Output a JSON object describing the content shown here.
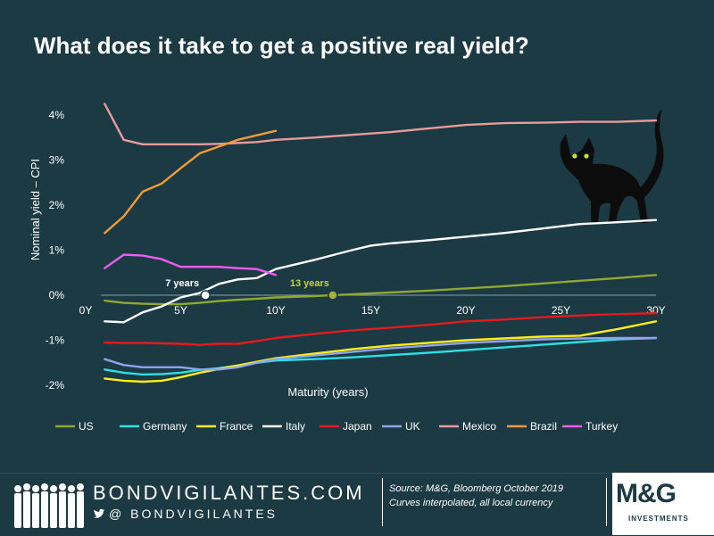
{
  "header": {
    "title": "What does it take to get a positive real yield?"
  },
  "chart_data": {
    "type": "line",
    "xlabel": "Maturity (years)",
    "ylabel": "Nominal yield – CPI",
    "xlim": [
      0,
      30
    ],
    "ylim": [
      -2.3,
      4.4
    ],
    "x_ticks": [
      0,
      5,
      10,
      15,
      20,
      25,
      30
    ],
    "x_tick_labels": [
      "0Y",
      "5Y",
      "10Y",
      "15Y",
      "20Y",
      "25Y",
      "30Y"
    ],
    "y_ticks": [
      4,
      3,
      2,
      1,
      0,
      -1,
      -2
    ],
    "y_tick_labels": [
      "4%",
      "3%",
      "2%",
      "1%",
      "0%",
      "-1%",
      "-2%"
    ],
    "legend_position": "bottom",
    "series": [
      {
        "name": "US",
        "color": "#8ea832",
        "x": [
          1,
          2,
          3,
          4,
          5,
          6,
          7,
          8,
          9,
          10,
          12,
          14,
          16,
          18,
          20,
          22,
          24,
          26,
          28,
          30
        ],
        "y": [
          -0.12,
          -0.17,
          -0.19,
          -0.2,
          -0.2,
          -0.17,
          -0.13,
          -0.1,
          -0.08,
          -0.05,
          -0.02,
          0.02,
          0.06,
          0.1,
          0.15,
          0.2,
          0.26,
          0.32,
          0.38,
          0.45
        ]
      },
      {
        "name": "Germany",
        "color": "#2de0e6",
        "x": [
          1,
          2,
          3,
          4,
          5,
          6,
          7,
          8,
          9,
          10,
          12,
          14,
          16,
          18,
          20,
          22,
          24,
          26,
          28,
          30
        ],
        "y": [
          -1.65,
          -1.72,
          -1.76,
          -1.75,
          -1.72,
          -1.66,
          -1.62,
          -1.56,
          -1.5,
          -1.45,
          -1.42,
          -1.38,
          -1.33,
          -1.28,
          -1.22,
          -1.16,
          -1.1,
          -1.04,
          -0.98,
          -0.95
        ]
      },
      {
        "name": "France",
        "color": "#ffee1a",
        "x": [
          1,
          2,
          3,
          4,
          5,
          6,
          7,
          8,
          9,
          10,
          12,
          14,
          16,
          18,
          20,
          22,
          24,
          26,
          28,
          30
        ],
        "y": [
          -1.85,
          -1.9,
          -1.92,
          -1.9,
          -1.82,
          -1.72,
          -1.64,
          -1.56,
          -1.48,
          -1.4,
          -1.3,
          -1.2,
          -1.12,
          -1.06,
          -1.0,
          -0.96,
          -0.92,
          -0.9,
          -0.75,
          -0.58
        ]
      },
      {
        "name": "Italy",
        "color": "#ffffff",
        "x": [
          1,
          2,
          3,
          4,
          5,
          6,
          7,
          8,
          9,
          10,
          12,
          14,
          15,
          16,
          18,
          20,
          22,
          24,
          26,
          28,
          30
        ],
        "y": [
          -0.58,
          -0.6,
          -0.38,
          -0.25,
          -0.05,
          0.05,
          0.25,
          0.35,
          0.38,
          0.58,
          0.78,
          1.0,
          1.1,
          1.15,
          1.22,
          1.3,
          1.38,
          1.48,
          1.58,
          1.62,
          1.67
        ]
      },
      {
        "name": "Japan",
        "color": "#e41b1b",
        "x": [
          1,
          2,
          3,
          4,
          5,
          6,
          7,
          8,
          9,
          10,
          12,
          14,
          16,
          18,
          20,
          22,
          24,
          26,
          28,
          30
        ],
        "y": [
          -1.05,
          -1.06,
          -1.06,
          -1.07,
          -1.08,
          -1.1,
          -1.08,
          -1.08,
          -1.02,
          -0.95,
          -0.86,
          -0.78,
          -0.72,
          -0.66,
          -0.58,
          -0.54,
          -0.49,
          -0.45,
          -0.42,
          -0.4
        ]
      },
      {
        "name": "UK",
        "color": "#8fa4ec",
        "x": [
          1,
          2,
          3,
          4,
          5,
          6,
          7,
          8,
          9,
          10,
          12,
          14,
          16,
          18,
          20,
          22,
          24,
          26,
          28,
          30
        ],
        "y": [
          -1.42,
          -1.55,
          -1.6,
          -1.6,
          -1.6,
          -1.65,
          -1.65,
          -1.6,
          -1.5,
          -1.42,
          -1.34,
          -1.26,
          -1.18,
          -1.12,
          -1.06,
          -1.02,
          -0.98,
          -0.96,
          -0.95,
          -0.95
        ]
      },
      {
        "name": "Mexico",
        "color": "#e79b9b",
        "x": [
          1,
          2,
          3,
          4,
          5,
          6,
          7,
          8,
          9,
          10,
          12,
          14,
          16,
          18,
          20,
          22,
          24,
          26,
          28,
          30
        ],
        "y": [
          4.25,
          3.45,
          3.35,
          3.35,
          3.35,
          3.35,
          3.36,
          3.38,
          3.4,
          3.45,
          3.5,
          3.56,
          3.62,
          3.7,
          3.78,
          3.82,
          3.83,
          3.85,
          3.85,
          3.88
        ]
      },
      {
        "name": "Brazil",
        "color": "#f59a34",
        "x": [
          1,
          2,
          3,
          4,
          5,
          6,
          7,
          8,
          9,
          10
        ],
        "y": [
          1.38,
          1.75,
          2.3,
          2.48,
          2.82,
          3.15,
          3.3,
          3.45,
          3.55,
          3.65
        ]
      },
      {
        "name": "Turkey",
        "color": "#f05cf0",
        "x": [
          1,
          2,
          3,
          4,
          5,
          6,
          7,
          8,
          9,
          10
        ],
        "y": [
          0.6,
          0.9,
          0.88,
          0.8,
          0.63,
          0.63,
          0.63,
          0.6,
          0.58,
          0.45
        ]
      }
    ],
    "annotations": [
      {
        "text": "7 years",
        "x": 6.3,
        "y": 0,
        "label_color": "#ffffff",
        "dot_fill": "#ffffff",
        "dot_stroke": "#1b3a44"
      },
      {
        "text": "13 years",
        "x": 13,
        "y": 0,
        "label_color": "#c3d43a",
        "dot_fill": "#a6b430",
        "dot_stroke": "#1b3a44"
      }
    ]
  },
  "footer": {
    "brand": "BONDVIGILANTES.COM",
    "handle": "@ BONDVIGILANTES",
    "twitter_icon": "twitter-bird-icon",
    "source_line1": "Source: M&G, Bloomberg October 2019",
    "source_line2": "Curves interpolated, all local currency",
    "logo_text": "M&G",
    "logo_sub": "INVESTMENTS"
  }
}
